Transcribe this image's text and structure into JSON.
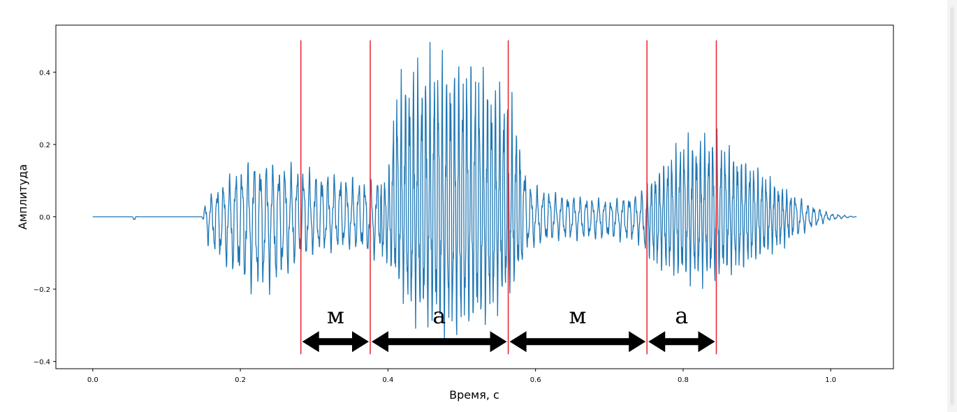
{
  "chart_data": {
    "type": "line",
    "xlabel": "Время, с",
    "ylabel": "Амплитуда",
    "xlim": [
      -0.05,
      1.085
    ],
    "ylim": [
      -0.42,
      0.53
    ],
    "x_ticks": [
      0.0,
      0.2,
      0.4,
      0.6,
      0.8,
      1.0
    ],
    "x_tick_labels": [
      "0.0",
      "0.2",
      "0.4",
      "0.6",
      "0.8",
      "1.0"
    ],
    "y_ticks": [
      -0.4,
      -0.2,
      0.0,
      0.2,
      0.4
    ],
    "y_tick_labels": [
      "−0.4",
      "−0.2",
      "0.0",
      "0.2",
      "0.4"
    ],
    "series_color": "#1f77b4",
    "marker_color": "#e8222b",
    "grid": false,
    "segment_markers": [
      0.282,
      0.376,
      0.563,
      0.751,
      0.845
    ],
    "segments": [
      {
        "label": "м",
        "start": 0.282,
        "end": 0.376
      },
      {
        "label": "а",
        "start": 0.376,
        "end": 0.563
      },
      {
        "label": "м",
        "start": 0.563,
        "end": 0.751
      },
      {
        "label": "а",
        "start": 0.751,
        "end": 0.845
      }
    ],
    "envelope": [
      {
        "x": 0.0,
        "pos": 0.0,
        "neg": 0.0
      },
      {
        "x": 0.054,
        "pos": 0.0,
        "neg": 0.0
      },
      {
        "x": 0.055,
        "pos": 0.01,
        "neg": -0.015
      },
      {
        "x": 0.06,
        "pos": 0.0,
        "neg": 0.0
      },
      {
        "x": 0.148,
        "pos": 0.0,
        "neg": 0.0
      },
      {
        "x": 0.155,
        "pos": 0.06,
        "neg": -0.08
      },
      {
        "x": 0.17,
        "pos": 0.09,
        "neg": -0.13
      },
      {
        "x": 0.2,
        "pos": 0.15,
        "neg": -0.2
      },
      {
        "x": 0.22,
        "pos": 0.17,
        "neg": -0.23
      },
      {
        "x": 0.25,
        "pos": 0.16,
        "neg": -0.21
      },
      {
        "x": 0.28,
        "pos": 0.15,
        "neg": -0.14
      },
      {
        "x": 0.3,
        "pos": 0.14,
        "neg": -0.11
      },
      {
        "x": 0.33,
        "pos": 0.13,
        "neg": -0.1
      },
      {
        "x": 0.36,
        "pos": 0.11,
        "neg": -0.1
      },
      {
        "x": 0.376,
        "pos": 0.11,
        "neg": -0.12
      },
      {
        "x": 0.4,
        "pos": 0.12,
        "neg": -0.15
      },
      {
        "x": 0.41,
        "pos": 0.4,
        "neg": -0.2
      },
      {
        "x": 0.43,
        "pos": 0.48,
        "neg": -0.3
      },
      {
        "x": 0.47,
        "pos": 0.49,
        "neg": -0.36
      },
      {
        "x": 0.5,
        "pos": 0.48,
        "neg": -0.35
      },
      {
        "x": 0.53,
        "pos": 0.45,
        "neg": -0.33
      },
      {
        "x": 0.56,
        "pos": 0.4,
        "neg": -0.25
      },
      {
        "x": 0.575,
        "pos": 0.3,
        "neg": -0.2
      },
      {
        "x": 0.59,
        "pos": 0.1,
        "neg": -0.1
      },
      {
        "x": 0.63,
        "pos": 0.07,
        "neg": -0.07
      },
      {
        "x": 0.7,
        "pos": 0.05,
        "neg": -0.07
      },
      {
        "x": 0.74,
        "pos": 0.07,
        "neg": -0.08
      },
      {
        "x": 0.76,
        "pos": 0.13,
        "neg": -0.15
      },
      {
        "x": 0.8,
        "pos": 0.24,
        "neg": -0.2
      },
      {
        "x": 0.84,
        "pos": 0.26,
        "neg": -0.2
      },
      {
        "x": 0.87,
        "pos": 0.2,
        "neg": -0.17
      },
      {
        "x": 0.93,
        "pos": 0.1,
        "neg": -0.1
      },
      {
        "x": 0.97,
        "pos": 0.04,
        "neg": -0.04
      },
      {
        "x": 1.0,
        "pos": 0.01,
        "neg": -0.01
      },
      {
        "x": 1.035,
        "pos": 0.0,
        "neg": 0.0
      }
    ]
  }
}
